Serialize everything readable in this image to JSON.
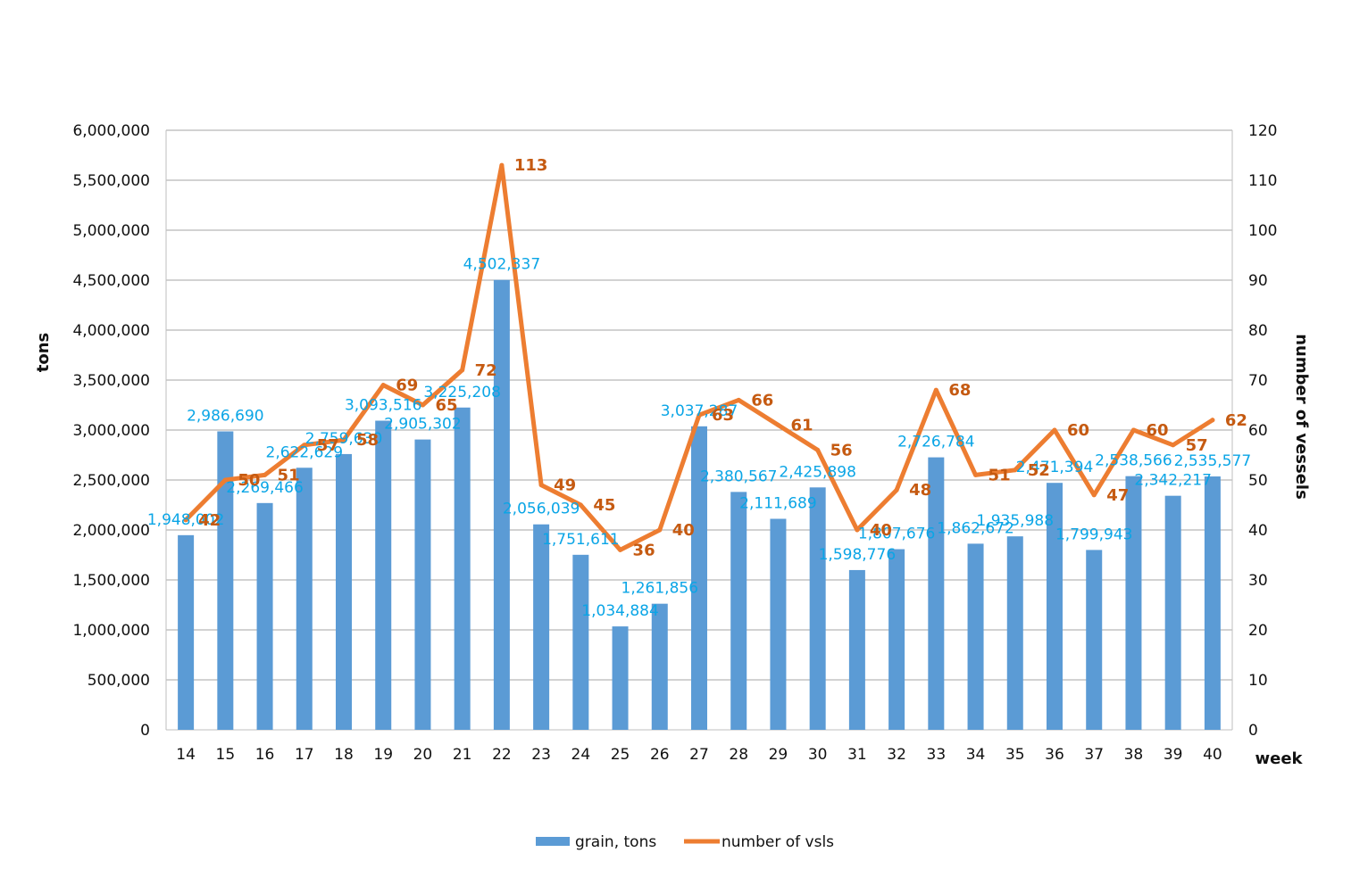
{
  "chart_data": {
    "type": "bar",
    "title": "",
    "xlabel": "week",
    "ylabel": "tons",
    "y2label": "number of vessels",
    "ylim": [
      0,
      6000000
    ],
    "y2lim": [
      0,
      120
    ],
    "categories": [
      "14",
      "15",
      "16",
      "17",
      "18",
      "19",
      "20",
      "21",
      "22",
      "23",
      "24",
      "25",
      "26",
      "27",
      "28",
      "29",
      "30",
      "31",
      "32",
      "33",
      "34",
      "35",
      "36",
      "37",
      "38",
      "39",
      "40"
    ],
    "series": [
      {
        "name": "grain, tons",
        "kind": "bar",
        "axis": "left",
        "color": "#5b9bd5",
        "label_color": "#0aa5e6",
        "values": [
          1948002,
          2986690,
          2269466,
          2622629,
          2759630,
          3093516,
          2905302,
          3225208,
          4502337,
          2056039,
          1751611,
          1034884,
          1261856,
          3037287,
          2380567,
          2111689,
          2425898,
          1598776,
          1807676,
          2726784,
          1862672,
          1935988,
          2471394,
          1799943,
          2538566,
          2342217,
          2535577
        ],
        "labels": [
          "1,948,002",
          "2,986,690",
          "2,269,466",
          "2,622,629",
          "2,759,630",
          "3,093,516",
          "2,905,302",
          "3,225,208",
          "4,502,337",
          "2,056,039",
          "1,751,611",
          "1,034,884",
          "1,261,856",
          "3,037,287",
          "2,380,567",
          "2,111,689",
          "2,425,898",
          "1,598,776",
          "1,807,676",
          "2,726,784",
          "1,862,672",
          "1,935,988",
          "2,471,394",
          "1,799,943",
          "2,538,566",
          "2,342,217",
          "2,535,577"
        ]
      },
      {
        "name": "number of vsls",
        "kind": "line",
        "axis": "right",
        "color": "#ed7d31",
        "label_color": "#c55a11",
        "values": [
          42,
          50,
          51,
          57,
          58,
          69,
          65,
          72,
          113,
          49,
          45,
          36,
          40,
          63,
          66,
          61,
          56,
          40,
          48,
          68,
          51,
          52,
          60,
          47,
          60,
          57,
          62
        ]
      }
    ],
    "left_ticks": [
      "0",
      "500,000",
      "1,000,000",
      "1,500,000",
      "2,000,000",
      "2,500,000",
      "3,000,000",
      "3,500,000",
      "4,000,000",
      "4,500,000",
      "5,000,000",
      "5,500,000",
      "6,000,000"
    ],
    "right_ticks": [
      "0",
      "10",
      "20",
      "30",
      "40",
      "50",
      "60",
      "70",
      "80",
      "90",
      "100",
      "110",
      "120"
    ],
    "grid": true,
    "legend": "bottom-center"
  }
}
